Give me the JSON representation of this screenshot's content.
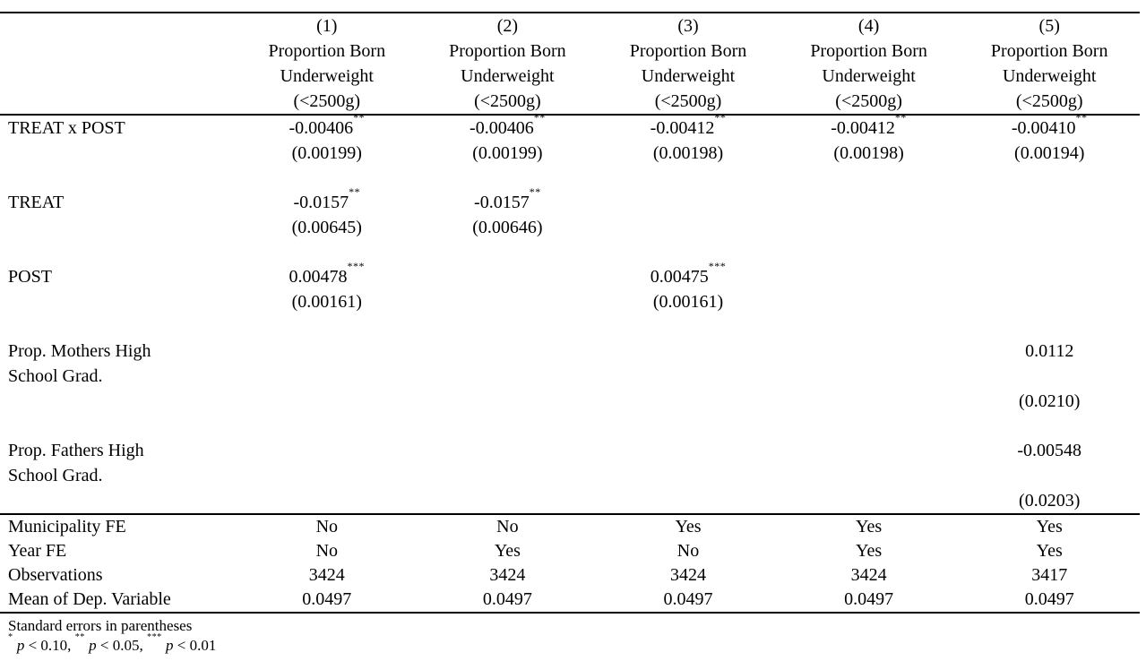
{
  "table": {
    "columns": [
      {
        "number": "(1)",
        "title_lines": [
          "Proportion Born",
          "Underweight",
          "(<2500g)"
        ]
      },
      {
        "number": "(2)",
        "title_lines": [
          "Proportion Born",
          "Underweight",
          "(<2500g)"
        ]
      },
      {
        "number": "(3)",
        "title_lines": [
          "Proportion Born",
          "Underweight",
          "(<2500g)"
        ]
      },
      {
        "number": "(4)",
        "title_lines": [
          "Proportion Born",
          "Underweight",
          "(<2500g)"
        ]
      },
      {
        "number": "(5)",
        "title_lines": [
          "Proportion Born",
          "Underweight",
          "(<2500g)"
        ]
      }
    ],
    "blocks": [
      {
        "name": "treat-x-post",
        "lines": [
          {
            "label": "TREAT x POST",
            "cells": [
              "-0.00406**",
              "-0.00406**",
              "-0.00412**",
              "-0.00412**",
              "-0.00410**"
            ]
          },
          {
            "label": "",
            "cells": [
              "(0.00199)",
              "(0.00199)",
              "(0.00198)",
              "(0.00198)",
              "(0.00194)"
            ]
          }
        ]
      },
      {
        "name": "treat",
        "lines": [
          {
            "label": "TREAT",
            "cells": [
              "-0.0157**",
              "-0.0157**",
              "",
              "",
              ""
            ]
          },
          {
            "label": "",
            "cells": [
              "(0.00645)",
              "(0.00646)",
              "",
              "",
              ""
            ]
          }
        ]
      },
      {
        "name": "post",
        "lines": [
          {
            "label": "POST",
            "cells": [
              "0.00478***",
              "",
              "0.00475***",
              "",
              ""
            ]
          },
          {
            "label": "",
            "cells": [
              "(0.00161)",
              "",
              "(0.00161)",
              "",
              ""
            ]
          }
        ]
      },
      {
        "name": "prop-mothers-hs-grad",
        "lines": [
          {
            "label": "Prop. Mothers High",
            "cells": [
              "",
              "",
              "",
              "",
              "0.0112"
            ]
          },
          {
            "label": "School Grad.",
            "cells": [
              "",
              "",
              "",
              "",
              ""
            ]
          },
          {
            "label": "",
            "cells": [
              "",
              "",
              "",
              "",
              "(0.0210)"
            ]
          }
        ]
      },
      {
        "name": "prop-fathers-hs-grad",
        "lines": [
          {
            "label": "Prop. Fathers High",
            "cells": [
              "",
              "",
              "",
              "",
              "-0.00548"
            ]
          },
          {
            "label": "School Grad.",
            "cells": [
              "",
              "",
              "",
              "",
              ""
            ]
          },
          {
            "label": "",
            "cells": [
              "",
              "",
              "",
              "",
              "(0.0203)"
            ]
          }
        ]
      }
    ],
    "summary_rows": [
      {
        "label": "Municipality FE",
        "values": [
          "No",
          "No",
          "Yes",
          "Yes",
          "Yes"
        ]
      },
      {
        "label": "Year FE",
        "values": [
          "No",
          "Yes",
          "No",
          "Yes",
          "Yes"
        ]
      },
      {
        "label": "Observations",
        "values": [
          "3424",
          "3424",
          "3424",
          "3424",
          "3417"
        ]
      },
      {
        "label": "Mean of Dep. Variable",
        "values": [
          "0.0497",
          "0.0497",
          "0.0497",
          "0.0497",
          "0.0497"
        ]
      }
    ],
    "notes": [
      "Standard errors in parentheses",
      "* p < 0.10, ** p < 0.05, *** p < 0.01"
    ]
  }
}
